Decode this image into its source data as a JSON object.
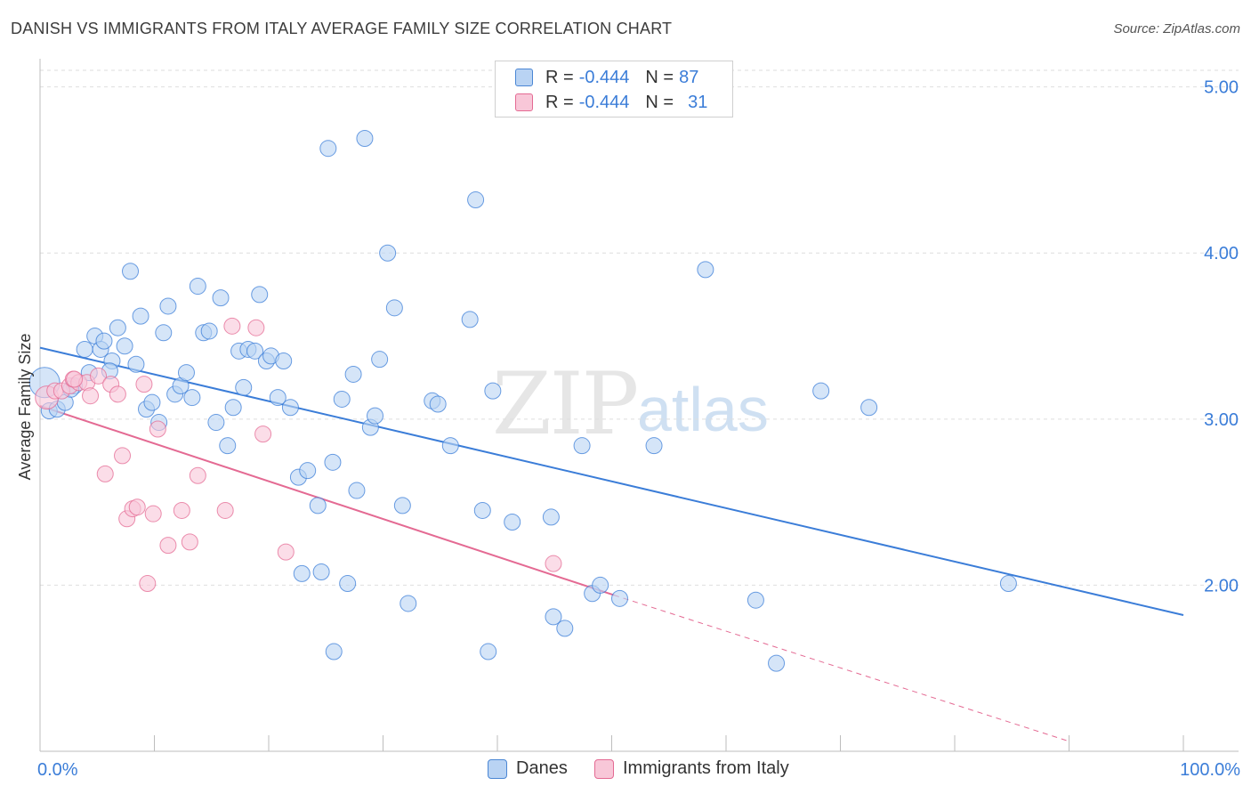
{
  "title": "DANISH VS IMMIGRANTS FROM ITALY AVERAGE FAMILY SIZE CORRELATION CHART",
  "source": "Source: ZipAtlas.com",
  "watermark": {
    "zip": "ZIP",
    "atlas": "atlas"
  },
  "legend": {
    "rows": [
      {
        "r_label": "R =",
        "r_value": "-0.444",
        "n_label": "N =",
        "n_value": "87",
        "color": "#4a86d4",
        "fill": "#b9d3f3"
      },
      {
        "r_label": "R =",
        "r_value": "-0.444",
        "n_label": "N =",
        "n_value": "31",
        "color": "#e46a93",
        "fill": "#f8c7d8"
      }
    ]
  },
  "bottom_legend": [
    {
      "label": "Danes",
      "color": "#4a86d4",
      "fill": "#b9d3f3"
    },
    {
      "label": "Immigrants from Italy",
      "color": "#e46a93",
      "fill": "#f8c7d8"
    }
  ],
  "chart_data": {
    "type": "scatter",
    "ylabel": "Average Family Size",
    "xlabel": "",
    "x_tick_labels": [
      "0.0%",
      "100.0%"
    ],
    "y_tick_labels": [
      "2.00",
      "3.00",
      "4.00",
      "5.00"
    ],
    "xlim": [
      0,
      100
    ],
    "ylim": [
      1.0,
      5.1
    ],
    "grid": true,
    "legend_placement": "top-center",
    "series": [
      {
        "name": "Danes",
        "color": "#3b7dd8",
        "fill": "#b9d3f3",
        "trend": {
          "x0": 0,
          "y0": 3.43,
          "x1": 100,
          "y1": 1.82
        },
        "points": [
          [
            0.4,
            3.22
          ],
          [
            0.8,
            3.05
          ],
          [
            1.5,
            3.06
          ],
          [
            2.2,
            3.1
          ],
          [
            3.0,
            3.2
          ],
          [
            3.9,
            3.42
          ],
          [
            4.3,
            3.28
          ],
          [
            4.8,
            3.5
          ],
          [
            5.3,
            3.42
          ],
          [
            5.6,
            3.47
          ],
          [
            6.3,
            3.35
          ],
          [
            6.8,
            3.55
          ],
          [
            7.4,
            3.44
          ],
          [
            7.9,
            3.89
          ],
          [
            8.4,
            3.33
          ],
          [
            8.8,
            3.62
          ],
          [
            9.3,
            3.06
          ],
          [
            9.8,
            3.1
          ],
          [
            10.4,
            2.98
          ],
          [
            10.8,
            3.52
          ],
          [
            11.2,
            3.68
          ],
          [
            11.8,
            3.15
          ],
          [
            12.3,
            3.2
          ],
          [
            12.8,
            3.28
          ],
          [
            13.3,
            3.13
          ],
          [
            13.8,
            3.8
          ],
          [
            14.3,
            3.52
          ],
          [
            14.8,
            3.53
          ],
          [
            15.4,
            2.98
          ],
          [
            15.8,
            3.73
          ],
          [
            16.4,
            2.84
          ],
          [
            16.9,
            3.07
          ],
          [
            17.4,
            3.41
          ],
          [
            17.8,
            3.19
          ],
          [
            18.2,
            3.42
          ],
          [
            18.8,
            3.41
          ],
          [
            19.2,
            3.75
          ],
          [
            19.8,
            3.35
          ],
          [
            20.2,
            3.38
          ],
          [
            20.8,
            3.13
          ],
          [
            21.3,
            3.35
          ],
          [
            21.9,
            3.07
          ],
          [
            22.6,
            2.65
          ],
          [
            22.9,
            2.07
          ],
          [
            23.4,
            2.69
          ],
          [
            24.3,
            2.48
          ],
          [
            24.6,
            2.08
          ],
          [
            25.2,
            4.63
          ],
          [
            25.6,
            2.74
          ],
          [
            25.7,
            1.6
          ],
          [
            26.4,
            3.12
          ],
          [
            26.9,
            2.01
          ],
          [
            27.4,
            3.27
          ],
          [
            27.7,
            2.57
          ],
          [
            28.4,
            4.69
          ],
          [
            28.9,
            2.95
          ],
          [
            29.3,
            3.02
          ],
          [
            29.7,
            3.36
          ],
          [
            30.4,
            4.0
          ],
          [
            31.0,
            3.67
          ],
          [
            31.7,
            2.48
          ],
          [
            32.2,
            1.89
          ],
          [
            34.3,
            3.11
          ],
          [
            34.8,
            3.09
          ],
          [
            35.9,
            2.84
          ],
          [
            37.6,
            3.6
          ],
          [
            38.1,
            4.32
          ],
          [
            38.7,
            2.45
          ],
          [
            39.2,
            1.6
          ],
          [
            39.6,
            3.17
          ],
          [
            41.3,
            2.38
          ],
          [
            44.7,
            2.41
          ],
          [
            44.9,
            1.81
          ],
          [
            45.9,
            1.74
          ],
          [
            47.4,
            2.84
          ],
          [
            48.3,
            1.95
          ],
          [
            49.0,
            2.0
          ],
          [
            50.7,
            1.92
          ],
          [
            53.7,
            2.84
          ],
          [
            58.2,
            3.9
          ],
          [
            62.6,
            1.91
          ],
          [
            64.4,
            1.53
          ],
          [
            68.3,
            3.17
          ],
          [
            72.5,
            3.07
          ],
          [
            84.7,
            2.01
          ],
          [
            2.7,
            3.18
          ],
          [
            6.1,
            3.29
          ]
        ]
      },
      {
        "name": "Immigrants from Italy",
        "color": "#e46a93",
        "fill": "#f8c7d8",
        "trend": {
          "x0": 0,
          "y0": 3.08,
          "x1": 50.2,
          "y1": 1.94
        },
        "trend_dashed": {
          "x0": 50.2,
          "y0": 1.94,
          "x1": 90,
          "y1": 1.06
        },
        "points": [
          [
            0.6,
            3.13
          ],
          [
            1.3,
            3.17
          ],
          [
            1.9,
            3.17
          ],
          [
            2.6,
            3.2
          ],
          [
            2.9,
            3.24
          ],
          [
            3.4,
            3.22
          ],
          [
            4.1,
            3.22
          ],
          [
            4.4,
            3.14
          ],
          [
            5.1,
            3.26
          ],
          [
            5.7,
            2.67
          ],
          [
            6.2,
            3.21
          ],
          [
            6.8,
            3.15
          ],
          [
            7.2,
            2.78
          ],
          [
            7.6,
            2.4
          ],
          [
            8.1,
            2.46
          ],
          [
            8.5,
            2.47
          ],
          [
            9.1,
            3.21
          ],
          [
            9.4,
            2.01
          ],
          [
            9.9,
            2.43
          ],
          [
            10.3,
            2.94
          ],
          [
            11.2,
            2.24
          ],
          [
            12.4,
            2.45
          ],
          [
            13.1,
            2.26
          ],
          [
            13.8,
            2.66
          ],
          [
            16.2,
            2.45
          ],
          [
            16.8,
            3.56
          ],
          [
            18.9,
            3.55
          ],
          [
            19.5,
            2.91
          ],
          [
            21.5,
            2.2
          ],
          [
            44.9,
            2.13
          ],
          [
            3.0,
            3.24
          ]
        ]
      }
    ]
  }
}
